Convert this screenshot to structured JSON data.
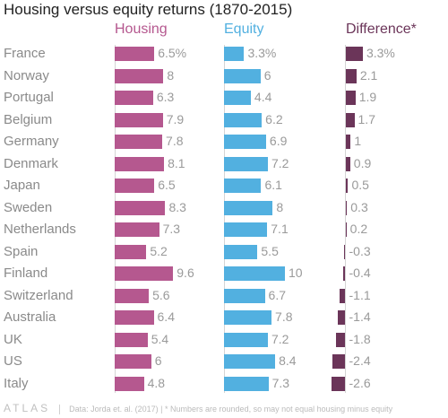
{
  "chart_data": {
    "type": "bar",
    "title": "Housing versus equity returns (1870-2015)",
    "categories": [
      "France",
      "Norway",
      "Portugal",
      "Belgium",
      "Germany",
      "Denmark",
      "Japan",
      "Sweden",
      "Netherlands",
      "Spain",
      "Finland",
      "Switzerland",
      "Australia",
      "UK",
      "US",
      "Italy"
    ],
    "series": [
      {
        "name": "Housing",
        "color": "#b5588f",
        "values": [
          6.5,
          8,
          6.3,
          7.9,
          7.8,
          8.1,
          6.5,
          8.3,
          7.3,
          5.2,
          9.6,
          5.6,
          6.4,
          5.4,
          6,
          4.8
        ],
        "labels": [
          "6.5%",
          "8",
          "6.3",
          "7.9",
          "7.8",
          "8.1",
          "6.5",
          "8.3",
          "7.3",
          "5.2",
          "9.6",
          "5.6",
          "6.4",
          "5.4",
          "6",
          "4.8"
        ]
      },
      {
        "name": "Equity",
        "color": "#52b0e0",
        "values": [
          3.3,
          6,
          4.4,
          6.2,
          6.9,
          7.2,
          6.1,
          8,
          7.1,
          5.5,
          10,
          6.7,
          7.8,
          7.2,
          8.4,
          7.3
        ],
        "labels": [
          "3.3%",
          "6",
          "4.4",
          "6.2",
          "6.9",
          "7.2",
          "6.1",
          "8",
          "7.1",
          "5.5",
          "10",
          "6.7",
          "7.8",
          "7.2",
          "8.4",
          "7.3"
        ]
      },
      {
        "name": "Difference*",
        "color": "#6b3559",
        "values": [
          3.3,
          2.1,
          1.9,
          1.7,
          1,
          0.9,
          0.5,
          0.3,
          0.2,
          -0.3,
          -0.4,
          -1.1,
          -1.4,
          -1.8,
          -2.4,
          -2.6
        ],
        "labels": [
          "3.3%",
          "2.1",
          "1.9",
          "1.7",
          "1",
          "0.9",
          "0.5",
          "0.3",
          "0.2",
          "-0.3",
          "-0.4",
          "-1.1",
          "-1.4",
          "-1.8",
          "-2.4",
          "-2.6"
        ]
      }
    ],
    "scales": {
      "housing_equity_max": 10,
      "difference_range": [
        -2.6,
        3.3
      ]
    },
    "legend": "column headers",
    "grid": false
  },
  "header": {
    "housing_label": "Housing",
    "equity_label": "Equity",
    "difference_label": "Difference*"
  },
  "footer": {
    "brand": "ATLAS",
    "source": "Data: Jorda et. al. (2017) | * Numbers are rounded, so may not equal housing minus equity"
  },
  "colors": {
    "title": "#222222",
    "label": "#8a8a8a",
    "value": "#9a9a9a"
  }
}
